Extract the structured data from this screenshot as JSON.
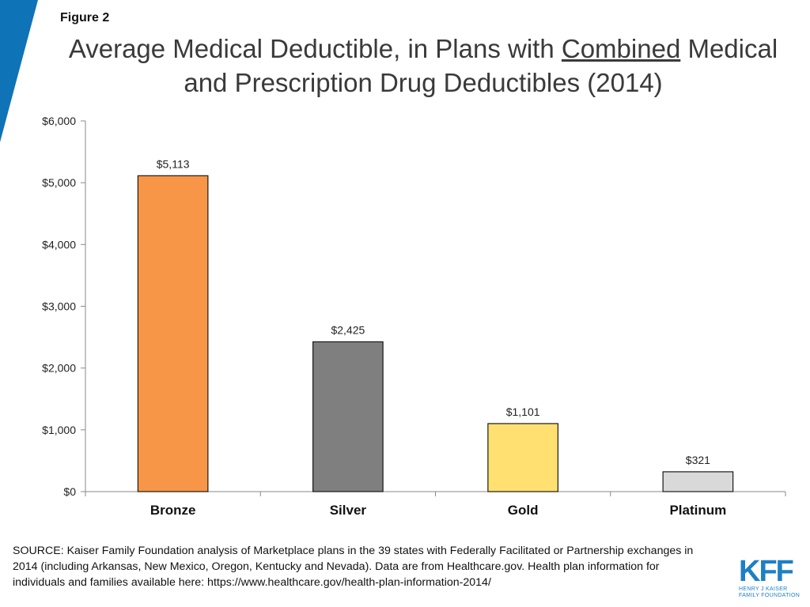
{
  "figure_label": "Figure 2",
  "title": {
    "part1": "Average Medical Deductible, in Plans with ",
    "underlined": "Combined",
    "part2": " Medical and Prescription Drug Deductibles (2014)"
  },
  "colors": {
    "stripe": "#0f73b8",
    "axis": "#888888",
    "text": "#222222"
  },
  "chart_data": {
    "type": "bar",
    "title": "Average Medical Deductible, in Plans with Combined Medical and Prescription Drug Deductibles (2014)",
    "categories": [
      "Bronze",
      "Silver",
      "Gold",
      "Platinum"
    ],
    "values": [
      5113,
      2425,
      1101,
      321
    ],
    "data_labels": [
      "$5,113",
      "$2,425",
      "$1,101",
      "$321"
    ],
    "bar_colors": [
      "#f79646",
      "#7f7f7f",
      "#ffe070",
      "#d9d9d9"
    ],
    "yticks": [
      0,
      1000,
      2000,
      3000,
      4000,
      5000,
      6000
    ],
    "ytick_labels": [
      "$0",
      "$1,000",
      "$2,000",
      "$3,000",
      "$4,000",
      "$5,000",
      "$6,000"
    ],
    "ylim": [
      0,
      6000
    ],
    "xlabel": "",
    "ylabel": "",
    "grid": false,
    "legend": "none"
  },
  "source_text": "SOURCE: Kaiser Family Foundation analysis of Marketplace plans in the 39 states with Federally Facilitated or Partnership exchanges in 2014 (including Arkansas, New Mexico, Oregon, Kentucky and Nevada). Data are from Healthcare.gov. Health plan information for individuals and families available here: https://www.healthcare.gov/health-plan-information-2014/",
  "logo": {
    "mark": "KFF",
    "line1": "HENRY J KAISER",
    "line2": "FAMILY FOUNDATION"
  }
}
